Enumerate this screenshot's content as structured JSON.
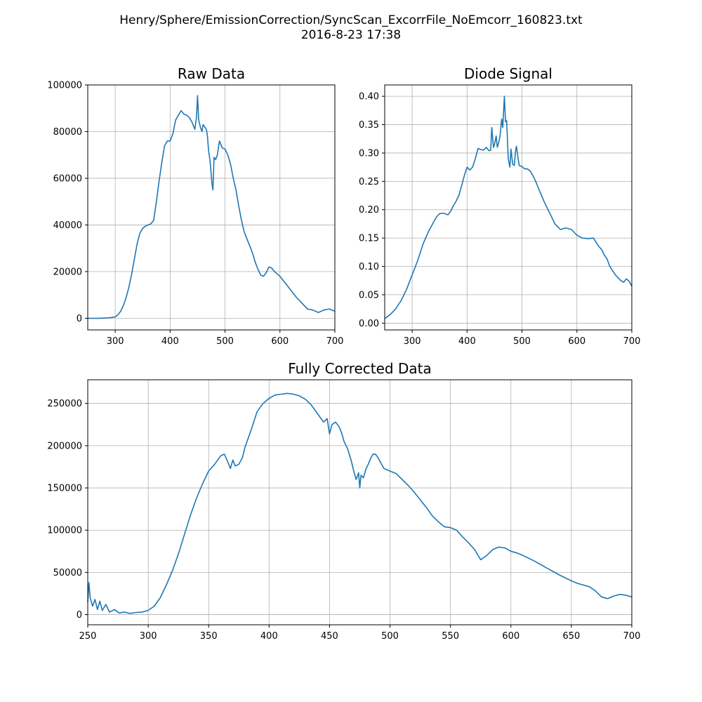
{
  "figure": {
    "title_line1": "Henry/Sphere/EmissionCorrection/SyncScan_ExcorrFile_NoEmcorr_160823.txt",
    "title_line2": "2016-8-23     17:38",
    "line_color": "#1f77b4"
  },
  "chart_data": [
    {
      "type": "line",
      "title": "Raw Data",
      "xlabel": "",
      "ylabel": "",
      "xlim": [
        250,
        700
      ],
      "ylim": [
        -5000,
        100000
      ],
      "grid": true,
      "x_ticks": [
        300,
        400,
        500,
        600,
        700
      ],
      "y_ticks": [
        0,
        20000,
        40000,
        60000,
        80000,
        100000
      ],
      "x": [
        250,
        270,
        290,
        300,
        305,
        310,
        315,
        320,
        325,
        330,
        335,
        340,
        345,
        350,
        355,
        360,
        365,
        370,
        375,
        380,
        385,
        390,
        395,
        400,
        405,
        410,
        415,
        420,
        425,
        430,
        435,
        440,
        445,
        448,
        450,
        452,
        455,
        458,
        460,
        463,
        466,
        468,
        470,
        473,
        476,
        478,
        480,
        483,
        486,
        490,
        495,
        500,
        505,
        510,
        515,
        520,
        525,
        530,
        535,
        540,
        545,
        550,
        555,
        560,
        565,
        570,
        575,
        580,
        585,
        590,
        595,
        600,
        610,
        620,
        630,
        640,
        650,
        660,
        670,
        680,
        690,
        700
      ],
      "y": [
        0,
        0,
        200,
        600,
        1500,
        3000,
        5500,
        9000,
        13500,
        19000,
        25500,
        32000,
        36500,
        38500,
        39500,
        40000,
        40500,
        42000,
        50000,
        59000,
        67000,
        74000,
        76000,
        76000,
        79000,
        85000,
        87000,
        89000,
        87500,
        87000,
        86000,
        84000,
        81000,
        86000,
        95500,
        85000,
        82000,
        80000,
        83000,
        82000,
        81000,
        78000,
        72000,
        67000,
        58000,
        55000,
        69000,
        68000,
        70000,
        76000,
        73000,
        72500,
        70000,
        66000,
        60000,
        55000,
        48000,
        42000,
        37000,
        34000,
        31000,
        28000,
        24000,
        21000,
        18500,
        18000,
        19500,
        22000,
        21500,
        20000,
        19000,
        18000,
        15000,
        12000,
        9000,
        6500,
        4000,
        3500,
        2500,
        3500,
        4000,
        3000
      ]
    },
    {
      "type": "line",
      "title": "Diode Signal",
      "xlabel": "",
      "ylabel": "",
      "xlim": [
        250,
        700
      ],
      "ylim": [
        -0.012,
        0.42
      ],
      "grid": true,
      "x_ticks": [
        300,
        400,
        500,
        600,
        700
      ],
      "y_ticks": [
        0.0,
        0.05,
        0.1,
        0.15,
        0.2,
        0.25,
        0.3,
        0.35,
        0.4
      ],
      "x": [
        250,
        260,
        270,
        280,
        290,
        300,
        310,
        320,
        330,
        340,
        345,
        350,
        355,
        360,
        365,
        370,
        375,
        380,
        385,
        390,
        395,
        400,
        405,
        410,
        415,
        420,
        425,
        430,
        435,
        440,
        443,
        445,
        448,
        450,
        453,
        455,
        458,
        460,
        463,
        465,
        468,
        470,
        472,
        475,
        478,
        480,
        483,
        486,
        488,
        490,
        493,
        495,
        500,
        505,
        510,
        515,
        520,
        525,
        530,
        540,
        550,
        560,
        570,
        580,
        590,
        600,
        610,
        620,
        630,
        640,
        645,
        650,
        655,
        660,
        670,
        680,
        685,
        690,
        695,
        700
      ],
      "y": [
        0.008,
        0.015,
        0.025,
        0.04,
        0.06,
        0.085,
        0.11,
        0.14,
        0.162,
        0.18,
        0.188,
        0.193,
        0.194,
        0.193,
        0.191,
        0.197,
        0.207,
        0.215,
        0.225,
        0.242,
        0.26,
        0.275,
        0.27,
        0.275,
        0.29,
        0.308,
        0.306,
        0.305,
        0.31,
        0.304,
        0.305,
        0.345,
        0.31,
        0.315,
        0.33,
        0.31,
        0.32,
        0.33,
        0.36,
        0.345,
        0.4,
        0.355,
        0.357,
        0.29,
        0.275,
        0.307,
        0.28,
        0.278,
        0.302,
        0.312,
        0.29,
        0.278,
        0.276,
        0.272,
        0.272,
        0.268,
        0.26,
        0.25,
        0.238,
        0.215,
        0.195,
        0.175,
        0.165,
        0.168,
        0.165,
        0.155,
        0.15,
        0.149,
        0.15,
        0.135,
        0.13,
        0.12,
        0.113,
        0.1,
        0.085,
        0.075,
        0.072,
        0.078,
        0.074,
        0.065
      ]
    },
    {
      "type": "line",
      "title": "Fully Corrected Data",
      "xlabel": "",
      "ylabel": "",
      "xlim": [
        250,
        700
      ],
      "ylim": [
        -12000,
        278000
      ],
      "grid": true,
      "x_ticks": [
        250,
        300,
        350,
        400,
        450,
        500,
        550,
        600,
        650,
        700
      ],
      "y_ticks": [
        0,
        50000,
        100000,
        150000,
        200000,
        250000
      ],
      "x": [
        250,
        251,
        252,
        254,
        256,
        258,
        260,
        262,
        265,
        268,
        272,
        276,
        280,
        285,
        290,
        295,
        300,
        305,
        310,
        315,
        320,
        325,
        330,
        335,
        340,
        345,
        350,
        355,
        360,
        363,
        366,
        368,
        370,
        372,
        375,
        378,
        380,
        385,
        390,
        395,
        400,
        405,
        410,
        415,
        420,
        425,
        430,
        435,
        440,
        445,
        448,
        450,
        452,
        455,
        458,
        460,
        462,
        465,
        468,
        470,
        472,
        474,
        475,
        476,
        478,
        480,
        482,
        484,
        486,
        488,
        490,
        493,
        495,
        500,
        505,
        510,
        515,
        520,
        525,
        530,
        535,
        540,
        545,
        550,
        555,
        560,
        565,
        570,
        575,
        580,
        585,
        590,
        595,
        600,
        605,
        610,
        620,
        630,
        640,
        650,
        655,
        660,
        665,
        670,
        675,
        680,
        685,
        690,
        695,
        700
      ],
      "y": [
        15000,
        38000,
        20000,
        10000,
        18000,
        6000,
        16000,
        5000,
        12000,
        3000,
        6000,
        2000,
        3000,
        1500,
        2500,
        3000,
        5000,
        10000,
        20000,
        35000,
        52000,
        72000,
        95000,
        118000,
        138000,
        155000,
        170000,
        178000,
        188000,
        190000,
        180000,
        173000,
        183000,
        176000,
        178000,
        186000,
        198000,
        218000,
        240000,
        250000,
        256000,
        260000,
        261000,
        262000,
        261000,
        259000,
        255000,
        248000,
        238000,
        228000,
        232000,
        214000,
        225000,
        228000,
        222000,
        215000,
        205000,
        196000,
        182000,
        170000,
        160000,
        168000,
        150000,
        165000,
        162000,
        172000,
        178000,
        185000,
        190000,
        190000,
        186000,
        178000,
        173000,
        170000,
        167000,
        160000,
        153000,
        145000,
        136000,
        127000,
        117000,
        110000,
        104000,
        103000,
        100000,
        92000,
        85000,
        77000,
        65000,
        70000,
        77000,
        80000,
        79000,
        75000,
        73000,
        70000,
        63000,
        55000,
        47000,
        40000,
        37000,
        35000,
        33000,
        28000,
        21000,
        19000,
        22000,
        24000,
        23000,
        21000
      ]
    }
  ]
}
